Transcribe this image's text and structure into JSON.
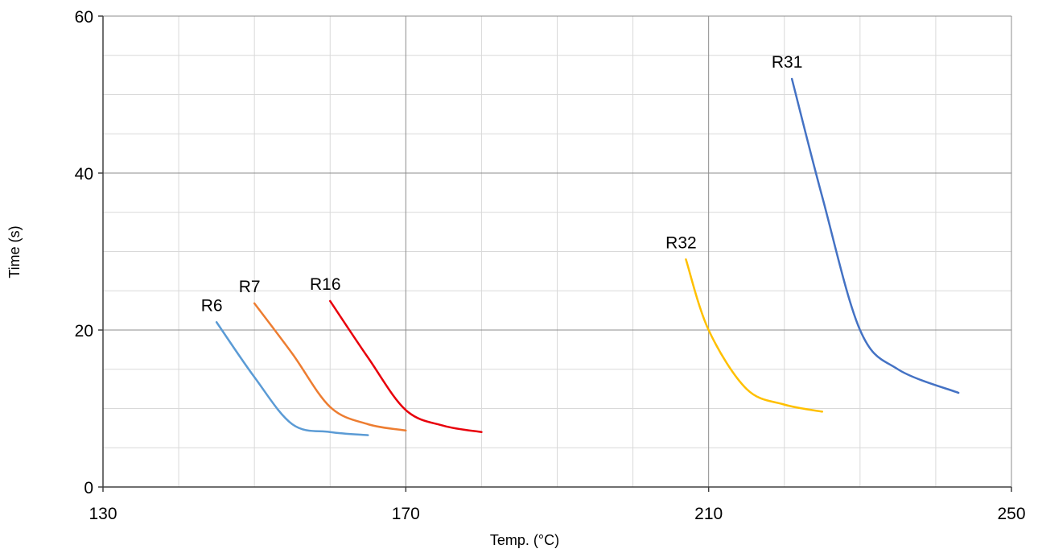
{
  "chart_data": {
    "type": "line",
    "xlabel": "Temp. (°C)",
    "ylabel": "Time (s)",
    "xlim": [
      130,
      250
    ],
    "ylim": [
      0,
      60
    ],
    "x_ticks": [
      130,
      170,
      210,
      250
    ],
    "y_ticks": [
      0,
      20,
      40,
      60
    ],
    "x_tick_labels": [
      "130",
      "170",
      "210",
      "250"
    ],
    "y_tick_labels": [
      "0",
      "20",
      "40",
      "60"
    ],
    "x_minor_step": 10,
    "y_minor_step": 5,
    "grid": true,
    "series": [
      {
        "name": "R6",
        "color": "#5B9BD5",
        "x": [
          145,
          150,
          155,
          160,
          165
        ],
        "y": [
          21,
          14,
          8,
          7,
          6.6
        ]
      },
      {
        "name": "R7",
        "color": "#ED7D31",
        "x": [
          150,
          155,
          160,
          165,
          170
        ],
        "y": [
          23.4,
          17,
          10.2,
          8,
          7.2
        ]
      },
      {
        "name": "R16",
        "color": "#E8000B",
        "x": [
          160,
          165,
          170,
          175,
          180
        ],
        "y": [
          23.7,
          16.5,
          9.8,
          7.8,
          7
        ]
      },
      {
        "name": "R32",
        "color": "#FFC000",
        "x": [
          207,
          210,
          215,
          220,
          225
        ],
        "y": [
          29,
          20,
          12.5,
          10.5,
          9.6
        ]
      },
      {
        "name": "R31",
        "color": "#4472C4",
        "x": [
          221,
          225,
          230,
          235,
          243
        ],
        "y": [
          52,
          37,
          20,
          15,
          12
        ]
      }
    ]
  }
}
